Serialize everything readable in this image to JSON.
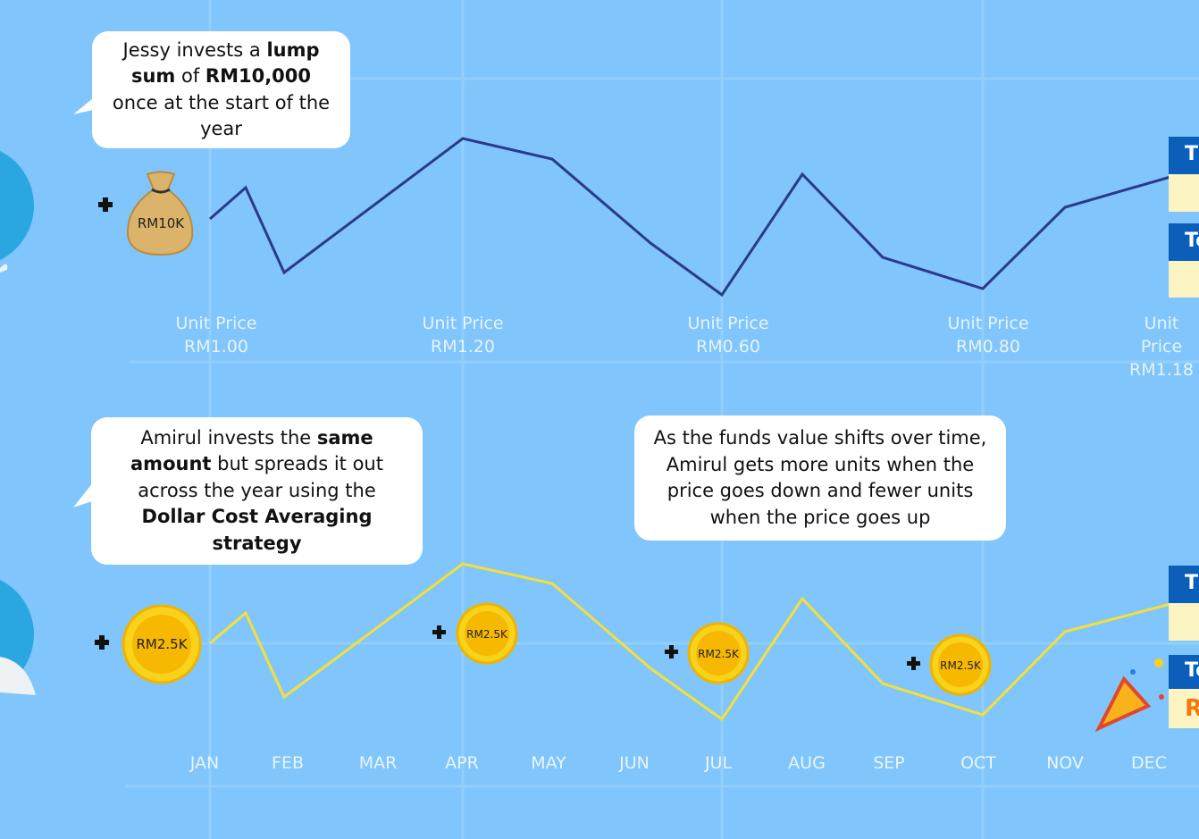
{
  "bubbles": [
    {
      "segments": [
        {
          "text": "Jessy invests a ",
          "bold": false
        },
        {
          "text": "lump sum",
          "bold": true
        },
        {
          "text": " of ",
          "bold": false
        },
        {
          "text": "RM10,000",
          "bold": true
        },
        {
          "text": " once at the start of the year",
          "bold": false
        }
      ]
    },
    {
      "segments": [
        {
          "text": "Amirul invests the ",
          "bold": false
        },
        {
          "text": "same amount",
          "bold": true
        },
        {
          "text": " but spreads it out across the year using the ",
          "bold": false
        },
        {
          "text": "Dollar Cost Averaging strategy",
          "bold": true
        }
      ]
    },
    {
      "segments": [
        {
          "text": "As the funds value shifts over time, Amirul gets more units when the price goes down and fewer units when the price goes up",
          "bold": false
        }
      ]
    }
  ],
  "coins": [
    "RM10K",
    "RM2.5K",
    "RM2.5K",
    "RM2.5K",
    "RM2.5K"
  ],
  "unit_prices": [
    {
      "label": "Unit Price",
      "price": "RM1.00"
    },
    {
      "label": "Unit Price",
      "price": "RM1.20"
    },
    {
      "label": "Unit Price",
      "price": "RM0.60"
    },
    {
      "label": "Unit Price",
      "price": "RM0.80"
    },
    {
      "label": "Unit Price",
      "price": "RM1.18"
    }
  ],
  "months": [
    "JAN",
    "FEB",
    "MAR",
    "APR",
    "MAY",
    "JUN",
    "JUL",
    "AUG",
    "SEP",
    "OCT",
    "NOV",
    "DEC"
  ],
  "side_boxes": [
    "T",
    "To",
    "T",
    "To",
    "R"
  ]
}
